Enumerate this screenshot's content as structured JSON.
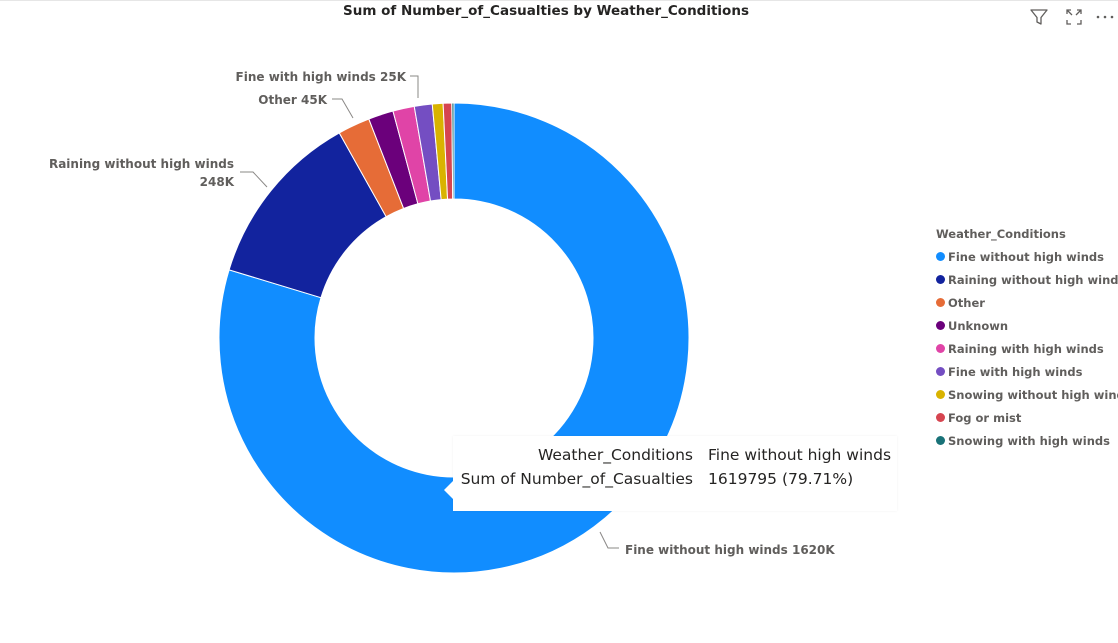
{
  "title": "Sum of Number_of_Casualties by Weather_Conditions",
  "header_icons": [
    "filter-icon",
    "focus-mode-icon",
    "more-options-icon"
  ],
  "chart_data": {
    "type": "donut",
    "title": "Sum of Number_of_Casualties by Weather_Conditions",
    "legend_title": "Weather_Conditions",
    "legend_position": "right",
    "slices": [
      {
        "name": "Fine without high winds",
        "value": 1619795,
        "color": "#118DFF",
        "label": "Fine without high winds 1620K"
      },
      {
        "name": "Raining without high winds",
        "value": 248000,
        "color": "#12239E",
        "label": "Raining without high winds 248K"
      },
      {
        "name": "Other",
        "value": 45000,
        "color": "#E66C37",
        "label": "Other 45K"
      },
      {
        "name": "Unknown",
        "value": 35000,
        "color": "#6B007B",
        "label": ""
      },
      {
        "name": "Raining with high winds",
        "value": 30000,
        "color": "#E044A7",
        "label": ""
      },
      {
        "name": "Fine with high winds",
        "value": 25000,
        "color": "#744EC2",
        "label": "Fine with high winds 25K"
      },
      {
        "name": "Snowing without high winds",
        "value": 15000,
        "color": "#D9B300",
        "label": ""
      },
      {
        "name": "Fog or mist",
        "value": 12000,
        "color": "#D64550",
        "label": ""
      },
      {
        "name": "Snowing with high winds",
        "value": 3000,
        "color": "#197278",
        "label": ""
      }
    ]
  },
  "tooltip": {
    "rows": [
      {
        "key": "Weather_Conditions",
        "value": "Fine without high winds"
      },
      {
        "key": "Sum of Number_of_Casualties",
        "value": "1619795 (79.71%)"
      }
    ]
  }
}
